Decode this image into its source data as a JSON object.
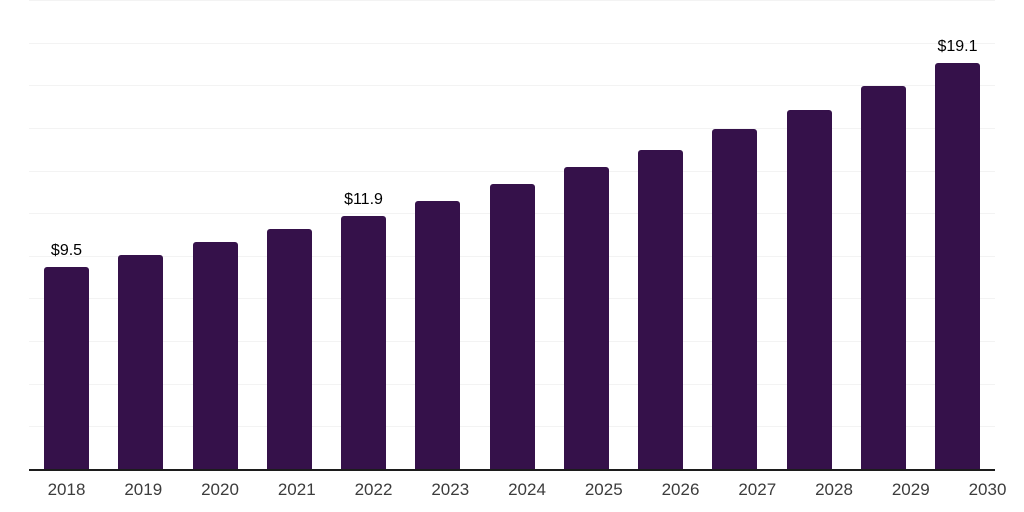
{
  "chart_data": {
    "type": "bar",
    "categories": [
      "2018",
      "2019",
      "2020",
      "2021",
      "2022",
      "2023",
      "2024",
      "2025",
      "2026",
      "2027",
      "2028",
      "2029",
      "2030"
    ],
    "values": [
      9.5,
      10.1,
      10.7,
      11.3,
      11.9,
      12.6,
      13.4,
      14.2,
      15.0,
      16.0,
      16.9,
      18.0,
      19.1
    ],
    "data_labels": [
      "$9.5",
      "",
      "",
      "",
      "$11.9",
      "",
      "",
      "",
      "",
      "",
      "",
      "",
      "$19.1"
    ],
    "ylim": [
      0,
      22
    ],
    "gridline_step": 2,
    "grid": true,
    "legend": "none",
    "colors": {
      "bar": "#35114A",
      "axis_line": "#1c1c1c",
      "gridline": "#f3f3f3",
      "data_label": "#000000",
      "tick_label": "#3c3c3c"
    }
  }
}
